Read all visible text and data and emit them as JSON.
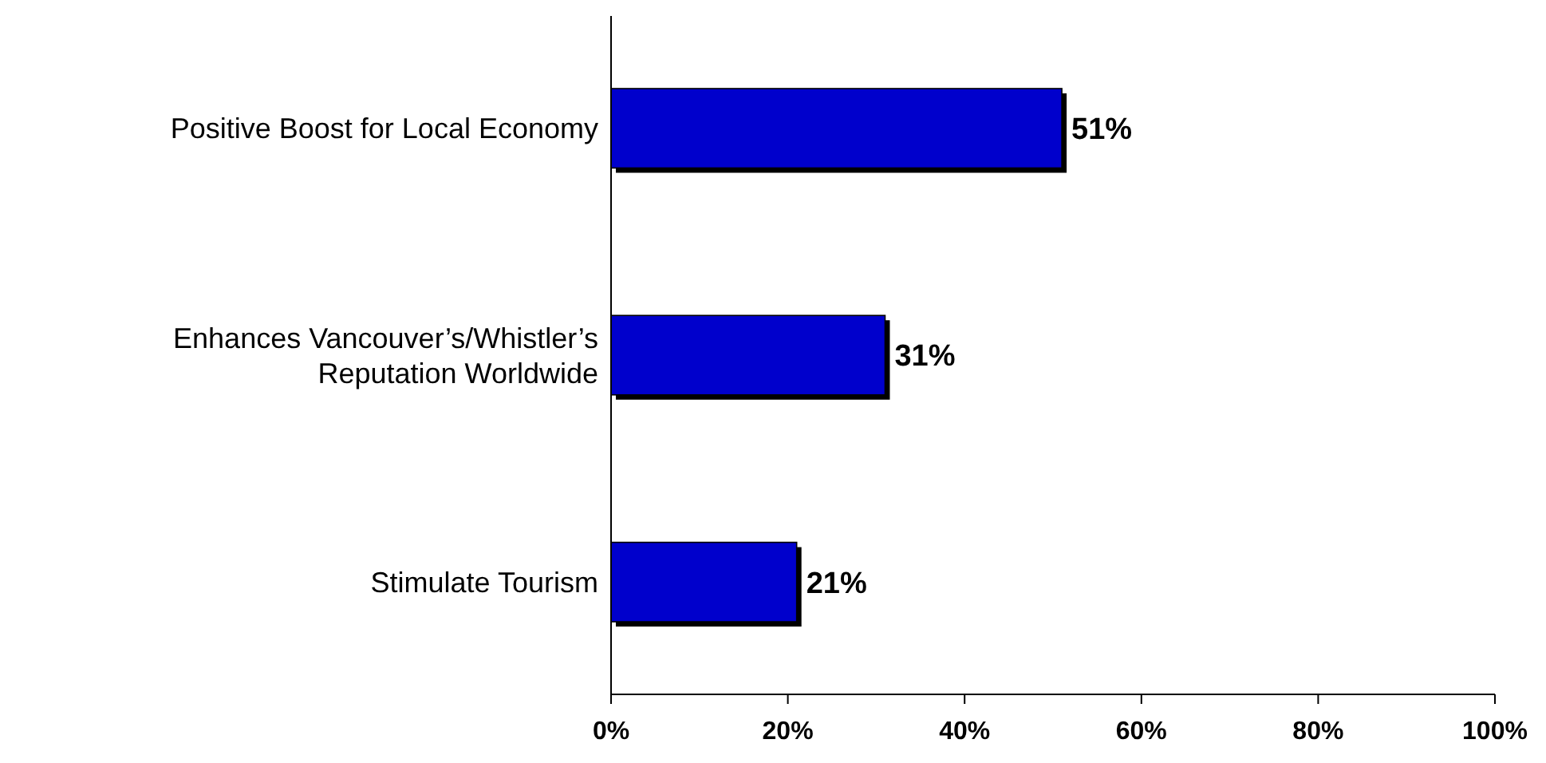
{
  "chart_data": {
    "type": "bar",
    "orientation": "horizontal",
    "categories": [
      "Positive Boost for Local Economy",
      "Enhances Vancouver’s/Whistler’s Reputation Worldwide",
      "Stimulate Tourism"
    ],
    "values": [
      51,
      31,
      21
    ],
    "value_labels": [
      "51%",
      "31%",
      "21%"
    ],
    "color": "#0000cc",
    "xlim": [
      0,
      100
    ],
    "xticks": [
      {
        "value": 0,
        "label": "0%"
      },
      {
        "value": 20,
        "label": "20%"
      },
      {
        "value": 40,
        "label": "40%"
      },
      {
        "value": 60,
        "label": "60%"
      },
      {
        "value": 80,
        "label": "80%"
      },
      {
        "value": 100,
        "label": "100%"
      }
    ],
    "grid": false
  }
}
